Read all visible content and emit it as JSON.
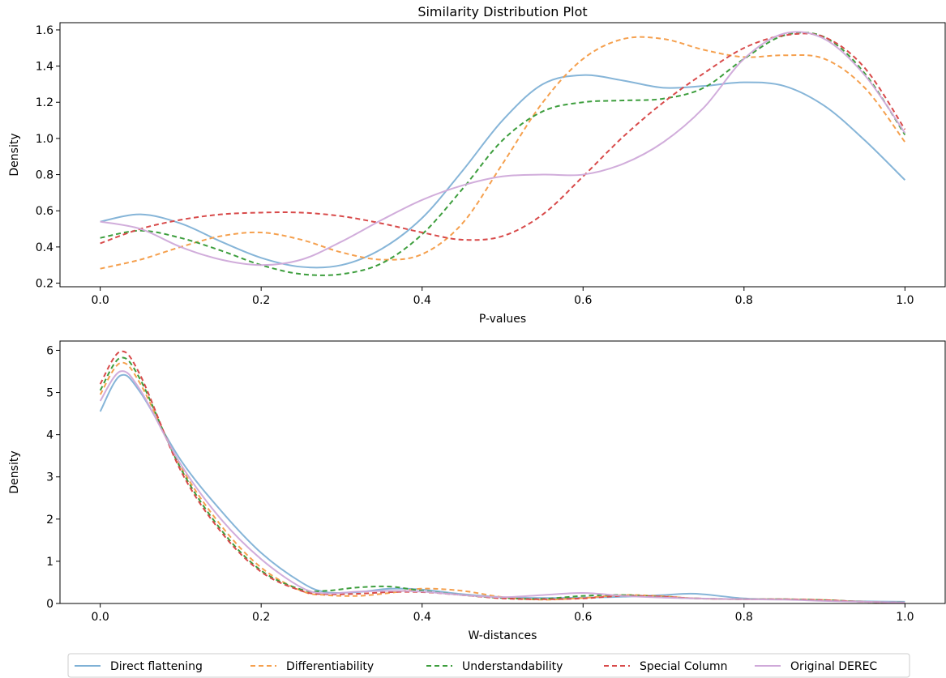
{
  "chart_data": [
    {
      "type": "line",
      "title": "Similarity Distribution Plot",
      "xlabel": "P-values",
      "ylabel": "Density",
      "xlim": [
        -0.05,
        1.05
      ],
      "ylim": [
        0.18,
        1.64
      ],
      "xticks": [
        0.0,
        0.2,
        0.4,
        0.6,
        0.8,
        1.0
      ],
      "xtick_labels": [
        "0.0",
        "0.2",
        "0.4",
        "0.6",
        "0.8",
        "1.0"
      ],
      "yticks": [
        0.2,
        0.4,
        0.6,
        0.8,
        1.0,
        1.2,
        1.4,
        1.6
      ],
      "ytick_labels": [
        "0.2",
        "0.4",
        "0.6",
        "0.8",
        "1.0",
        "1.2",
        "1.4",
        "1.6"
      ],
      "grid": false,
      "series": [
        {
          "name": "Direct flattening",
          "x": [
            0.0,
            0.05,
            0.1,
            0.15,
            0.2,
            0.25,
            0.3,
            0.35,
            0.4,
            0.45,
            0.5,
            0.55,
            0.6,
            0.65,
            0.7,
            0.75,
            0.8,
            0.85,
            0.9,
            0.95,
            1.0
          ],
          "y": [
            0.54,
            0.58,
            0.53,
            0.43,
            0.34,
            0.29,
            0.3,
            0.39,
            0.56,
            0.82,
            1.1,
            1.3,
            1.35,
            1.32,
            1.28,
            1.29,
            1.31,
            1.29,
            1.18,
            0.99,
            0.77
          ]
        },
        {
          "name": "Differentiability",
          "x": [
            0.0,
            0.05,
            0.1,
            0.15,
            0.2,
            0.25,
            0.3,
            0.35,
            0.4,
            0.45,
            0.5,
            0.55,
            0.6,
            0.65,
            0.7,
            0.75,
            0.8,
            0.85,
            0.9,
            0.95,
            1.0
          ],
          "y": [
            0.28,
            0.33,
            0.4,
            0.46,
            0.48,
            0.44,
            0.37,
            0.33,
            0.36,
            0.53,
            0.86,
            1.2,
            1.44,
            1.55,
            1.55,
            1.49,
            1.45,
            1.46,
            1.44,
            1.28,
            0.98
          ]
        },
        {
          "name": "Understandability",
          "x": [
            0.0,
            0.05,
            0.1,
            0.15,
            0.2,
            0.25,
            0.3,
            0.35,
            0.4,
            0.45,
            0.5,
            0.55,
            0.6,
            0.65,
            0.7,
            0.75,
            0.8,
            0.85,
            0.9,
            0.95,
            1.0
          ],
          "y": [
            0.45,
            0.49,
            0.45,
            0.38,
            0.3,
            0.25,
            0.25,
            0.31,
            0.47,
            0.72,
            0.99,
            1.15,
            1.2,
            1.21,
            1.22,
            1.28,
            1.44,
            1.57,
            1.56,
            1.36,
            1.02
          ]
        },
        {
          "name": "Special Column",
          "x": [
            0.0,
            0.05,
            0.1,
            0.15,
            0.2,
            0.25,
            0.3,
            0.35,
            0.4,
            0.45,
            0.5,
            0.55,
            0.6,
            0.65,
            0.7,
            0.75,
            0.8,
            0.85,
            0.9,
            0.95,
            1.0
          ],
          "y": [
            0.42,
            0.5,
            0.55,
            0.58,
            0.59,
            0.59,
            0.57,
            0.53,
            0.48,
            0.44,
            0.46,
            0.58,
            0.79,
            1.01,
            1.2,
            1.36,
            1.5,
            1.57,
            1.56,
            1.39,
            1.05
          ]
        },
        {
          "name": "Original DEREC",
          "x": [
            0.0,
            0.05,
            0.1,
            0.15,
            0.2,
            0.25,
            0.3,
            0.35,
            0.4,
            0.45,
            0.5,
            0.55,
            0.6,
            0.65,
            0.7,
            0.75,
            0.8,
            0.85,
            0.9,
            0.95,
            1.0
          ],
          "y": [
            0.54,
            0.5,
            0.4,
            0.33,
            0.3,
            0.33,
            0.43,
            0.55,
            0.66,
            0.74,
            0.79,
            0.8,
            0.8,
            0.86,
            0.98,
            1.17,
            1.44,
            1.58,
            1.55,
            1.35,
            1.03
          ]
        }
      ]
    },
    {
      "type": "line",
      "title": "",
      "xlabel": "W-distances",
      "ylabel": "Density",
      "xlim": [
        -0.05,
        1.05
      ],
      "ylim": [
        0,
        6.22
      ],
      "xticks": [
        0.0,
        0.2,
        0.4,
        0.6,
        0.8,
        1.0
      ],
      "xtick_labels": [
        "0.0",
        "0.2",
        "0.4",
        "0.6",
        "0.8",
        "1.0"
      ],
      "yticks": [
        0,
        1,
        2,
        3,
        4,
        5,
        6
      ],
      "ytick_labels": [
        "0",
        "1",
        "2",
        "3",
        "4",
        "5",
        "6"
      ],
      "grid": false,
      "series": [
        {
          "name": "Direct flattening",
          "x": [
            0.0,
            0.025,
            0.05,
            0.1,
            0.15,
            0.2,
            0.25,
            0.28,
            0.32,
            0.36,
            0.4,
            0.45,
            0.5,
            0.55,
            0.6,
            0.65,
            0.7,
            0.74,
            0.8,
            0.85,
            0.9,
            0.95,
            1.0
          ],
          "y": [
            4.55,
            5.4,
            5.0,
            3.4,
            2.2,
            1.2,
            0.5,
            0.27,
            0.27,
            0.35,
            0.33,
            0.22,
            0.15,
            0.13,
            0.14,
            0.16,
            0.2,
            0.23,
            0.12,
            0.1,
            0.07,
            0.05,
            0.04
          ]
        },
        {
          "name": "Differentiability",
          "x": [
            0.0,
            0.025,
            0.05,
            0.1,
            0.15,
            0.2,
            0.25,
            0.28,
            0.32,
            0.36,
            0.4,
            0.45,
            0.5,
            0.55,
            0.6,
            0.65,
            0.7,
            0.74,
            0.8,
            0.85,
            0.9,
            0.95,
            1.0
          ],
          "y": [
            4.95,
            5.7,
            5.2,
            3.25,
            1.85,
            0.85,
            0.3,
            0.2,
            0.18,
            0.25,
            0.35,
            0.3,
            0.15,
            0.09,
            0.13,
            0.2,
            0.17,
            0.12,
            0.1,
            0.1,
            0.08,
            0.04,
            0.02
          ]
        },
        {
          "name": "Understandability",
          "x": [
            0.0,
            0.025,
            0.05,
            0.1,
            0.15,
            0.2,
            0.25,
            0.28,
            0.32,
            0.36,
            0.4,
            0.45,
            0.5,
            0.55,
            0.6,
            0.65,
            0.7,
            0.74,
            0.8,
            0.85,
            0.9,
            0.95,
            1.0
          ],
          "y": [
            5.05,
            5.82,
            5.3,
            3.2,
            1.75,
            0.78,
            0.33,
            0.3,
            0.38,
            0.4,
            0.3,
            0.2,
            0.13,
            0.11,
            0.18,
            0.2,
            0.15,
            0.12,
            0.1,
            0.1,
            0.08,
            0.04,
            0.02
          ]
        },
        {
          "name": "Special Column",
          "x": [
            0.0,
            0.025,
            0.05,
            0.1,
            0.15,
            0.2,
            0.25,
            0.28,
            0.32,
            0.36,
            0.4,
            0.45,
            0.5,
            0.55,
            0.6,
            0.65,
            0.7,
            0.74,
            0.8,
            0.85,
            0.9,
            0.95,
            1.0
          ],
          "y": [
            5.2,
            5.97,
            5.4,
            3.15,
            1.7,
            0.75,
            0.3,
            0.22,
            0.23,
            0.27,
            0.27,
            0.2,
            0.12,
            0.1,
            0.12,
            0.18,
            0.16,
            0.12,
            0.1,
            0.1,
            0.08,
            0.04,
            0.02
          ]
        },
        {
          "name": "Original DEREC",
          "x": [
            0.0,
            0.025,
            0.05,
            0.1,
            0.15,
            0.2,
            0.25,
            0.28,
            0.32,
            0.36,
            0.4,
            0.45,
            0.5,
            0.55,
            0.6,
            0.65,
            0.7,
            0.74,
            0.8,
            0.85,
            0.9,
            0.95,
            1.0
          ],
          "y": [
            4.8,
            5.5,
            5.05,
            3.3,
            2.0,
            1.05,
            0.38,
            0.24,
            0.28,
            0.3,
            0.28,
            0.2,
            0.15,
            0.2,
            0.25,
            0.18,
            0.14,
            0.12,
            0.1,
            0.09,
            0.06,
            0.04,
            0.02
          ]
        }
      ]
    }
  ],
  "legend": {
    "placement": "bottom-center",
    "entries": [
      {
        "name": "Direct flattening",
        "color": "#7fb1d6",
        "dashed": false
      },
      {
        "name": "Differentiability",
        "color": "#f5a04e",
        "dashed": true
      },
      {
        "name": "Understandability",
        "color": "#3d9e3d",
        "dashed": true
      },
      {
        "name": "Special Column",
        "color": "#d84a4a",
        "dashed": true
      },
      {
        "name": "Original DEREC",
        "color": "#cfa9d9",
        "dashed": false
      }
    ]
  }
}
